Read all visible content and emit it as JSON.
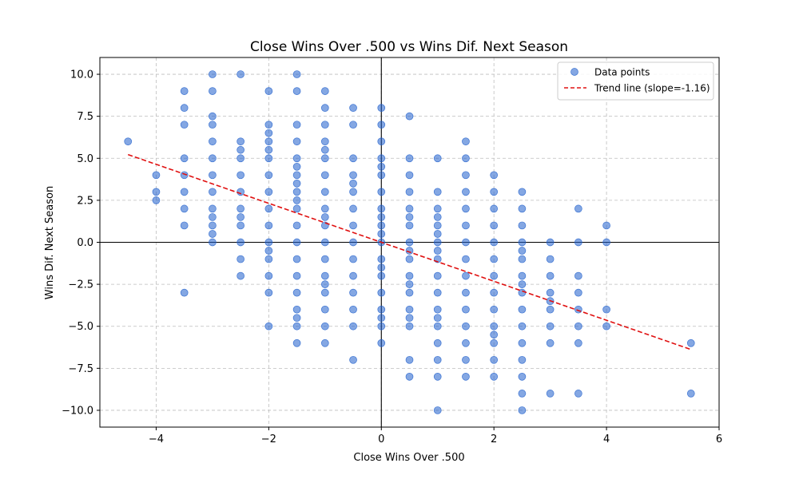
{
  "chart_data": {
    "type": "scatter",
    "title": "Close Wins Over .500 vs Wins Dif. Next Season",
    "xlabel": "Close Wins Over .500",
    "ylabel": "Wins Dif. Next Season",
    "xlim": [
      -5,
      6
    ],
    "ylim": [
      -11,
      11
    ],
    "xticks": [
      -4,
      -2,
      0,
      2,
      4,
      6
    ],
    "xtick_labels": [
      "−4",
      "−2",
      "0",
      "2",
      "4",
      "6"
    ],
    "yticks": [
      -10,
      -7.5,
      -5,
      -2.5,
      0,
      2.5,
      5,
      7.5,
      10
    ],
    "ytick_labels": [
      "−10.0",
      "−7.5",
      "−5.0",
      "−2.5",
      "0.0",
      "2.5",
      "5.0",
      "7.5",
      "10.0"
    ],
    "grid": true,
    "legend": {
      "position": "top-right",
      "entries": [
        "Data points",
        "Trend line (slope=-1.16)"
      ]
    },
    "colors": {
      "points": "#1f5fcc",
      "trend": "#e01010",
      "axes": "#000000"
    },
    "trend_line": {
      "slope": -1.16,
      "x": [
        -4.5,
        5.5
      ],
      "y": [
        5.22,
        -6.38
      ]
    },
    "reference_lines": {
      "x": 0,
      "y": 0
    },
    "series": [
      {
        "name": "Data points",
        "points": [
          [
            -4.5,
            6
          ],
          [
            -4,
            4
          ],
          [
            -4,
            3
          ],
          [
            -4,
            2.5
          ],
          [
            -3.5,
            9
          ],
          [
            -3.5,
            8
          ],
          [
            -3.5,
            7
          ],
          [
            -3.5,
            5
          ],
          [
            -3.5,
            4
          ],
          [
            -3.5,
            3
          ],
          [
            -3.5,
            2
          ],
          [
            -3.5,
            1
          ],
          [
            -3.5,
            -3
          ],
          [
            -3,
            10
          ],
          [
            -3,
            9
          ],
          [
            -3,
            7.5
          ],
          [
            -3,
            7
          ],
          [
            -3,
            6
          ],
          [
            -3,
            5
          ],
          [
            -3,
            4
          ],
          [
            -3,
            3
          ],
          [
            -3,
            2
          ],
          [
            -3,
            1.5
          ],
          [
            -3,
            1
          ],
          [
            -3,
            0.5
          ],
          [
            -3,
            0
          ],
          [
            -2.5,
            10
          ],
          [
            -2.5,
            6
          ],
          [
            -2.5,
            5.5
          ],
          [
            -2.5,
            5
          ],
          [
            -2.5,
            4
          ],
          [
            -2.5,
            3
          ],
          [
            -2.5,
            2
          ],
          [
            -2.5,
            1.5
          ],
          [
            -2.5,
            1
          ],
          [
            -2.5,
            0
          ],
          [
            -2.5,
            -1
          ],
          [
            -2.5,
            -2
          ],
          [
            -2,
            9
          ],
          [
            -2,
            7
          ],
          [
            -2,
            6.5
          ],
          [
            -2,
            6
          ],
          [
            -2,
            5.5
          ],
          [
            -2,
            5
          ],
          [
            -2,
            4
          ],
          [
            -2,
            3
          ],
          [
            -2,
            2
          ],
          [
            -2,
            1
          ],
          [
            -2,
            0
          ],
          [
            -2,
            -0.5
          ],
          [
            -2,
            -1
          ],
          [
            -2,
            -2
          ],
          [
            -2,
            -3
          ],
          [
            -2,
            -5
          ],
          [
            -1.5,
            10
          ],
          [
            -1.5,
            9
          ],
          [
            -1.5,
            7
          ],
          [
            -1.5,
            6
          ],
          [
            -1.5,
            5
          ],
          [
            -1.5,
            4.5
          ],
          [
            -1.5,
            4
          ],
          [
            -1.5,
            3.5
          ],
          [
            -1.5,
            3
          ],
          [
            -1.5,
            2.5
          ],
          [
            -1.5,
            2
          ],
          [
            -1.5,
            1
          ],
          [
            -1.5,
            0
          ],
          [
            -1.5,
            -1
          ],
          [
            -1.5,
            -2
          ],
          [
            -1.5,
            -3
          ],
          [
            -1.5,
            -4
          ],
          [
            -1.5,
            -4.5
          ],
          [
            -1.5,
            -5
          ],
          [
            -1.5,
            -6
          ],
          [
            -1,
            9
          ],
          [
            -1,
            8
          ],
          [
            -1,
            7
          ],
          [
            -1,
            6
          ],
          [
            -1,
            5.5
          ],
          [
            -1,
            5
          ],
          [
            -1,
            4
          ],
          [
            -1,
            3
          ],
          [
            -1,
            2
          ],
          [
            -1,
            1.5
          ],
          [
            -1,
            1
          ],
          [
            -1,
            0
          ],
          [
            -1,
            -1
          ],
          [
            -1,
            -2
          ],
          [
            -1,
            -2.5
          ],
          [
            -1,
            -3
          ],
          [
            -1,
            -4
          ],
          [
            -1,
            -5
          ],
          [
            -1,
            -6
          ],
          [
            -0.5,
            8
          ],
          [
            -0.5,
            7
          ],
          [
            -0.5,
            5
          ],
          [
            -0.5,
            4
          ],
          [
            -0.5,
            3.5
          ],
          [
            -0.5,
            3
          ],
          [
            -0.5,
            2
          ],
          [
            -0.5,
            1
          ],
          [
            -0.5,
            0
          ],
          [
            -0.5,
            -1
          ],
          [
            -0.5,
            -2
          ],
          [
            -0.5,
            -3
          ],
          [
            -0.5,
            -4
          ],
          [
            -0.5,
            -5
          ],
          [
            -0.5,
            -7
          ],
          [
            0,
            8
          ],
          [
            0,
            7
          ],
          [
            0,
            6
          ],
          [
            0,
            5
          ],
          [
            0,
            4.5
          ],
          [
            0,
            4
          ],
          [
            0,
            3
          ],
          [
            0,
            2
          ],
          [
            0,
            1.5
          ],
          [
            0,
            1
          ],
          [
            0,
            0.5
          ],
          [
            0,
            0
          ],
          [
            0,
            -1
          ],
          [
            0,
            -1.5
          ],
          [
            0,
            -2
          ],
          [
            0,
            -3
          ],
          [
            0,
            -4
          ],
          [
            0,
            -4.5
          ],
          [
            0,
            -5
          ],
          [
            0,
            -6
          ],
          [
            0.5,
            7.5
          ],
          [
            0.5,
            5
          ],
          [
            0.5,
            4
          ],
          [
            0.5,
            3
          ],
          [
            0.5,
            2
          ],
          [
            0.5,
            1.5
          ],
          [
            0.5,
            1
          ],
          [
            0.5,
            0
          ],
          [
            0.5,
            -0.5
          ],
          [
            0.5,
            -1
          ],
          [
            0.5,
            -2
          ],
          [
            0.5,
            -2.5
          ],
          [
            0.5,
            -3
          ],
          [
            0.5,
            -4
          ],
          [
            0.5,
            -4.5
          ],
          [
            0.5,
            -5
          ],
          [
            0.5,
            -7
          ],
          [
            0.5,
            -8
          ],
          [
            1,
            5
          ],
          [
            1,
            3
          ],
          [
            1,
            2
          ],
          [
            1,
            1.5
          ],
          [
            1,
            1
          ],
          [
            1,
            0.5
          ],
          [
            1,
            0
          ],
          [
            1,
            -0.5
          ],
          [
            1,
            -1
          ],
          [
            1,
            -2
          ],
          [
            1,
            -3
          ],
          [
            1,
            -4
          ],
          [
            1,
            -4.5
          ],
          [
            1,
            -5
          ],
          [
            1,
            -6
          ],
          [
            1,
            -7
          ],
          [
            1,
            -8
          ],
          [
            1,
            -10
          ],
          [
            1.5,
            6
          ],
          [
            1.5,
            5
          ],
          [
            1.5,
            4
          ],
          [
            1.5,
            3
          ],
          [
            1.5,
            2
          ],
          [
            1.5,
            1
          ],
          [
            1.5,
            0
          ],
          [
            1.5,
            -1
          ],
          [
            1.5,
            -2
          ],
          [
            1.5,
            -3
          ],
          [
            1.5,
            -4
          ],
          [
            1.5,
            -5
          ],
          [
            1.5,
            -6
          ],
          [
            1.5,
            -7
          ],
          [
            1.5,
            -8
          ],
          [
            2,
            4
          ],
          [
            2,
            3
          ],
          [
            2,
            2
          ],
          [
            2,
            1
          ],
          [
            2,
            0
          ],
          [
            2,
            -1
          ],
          [
            2,
            -2
          ],
          [
            2,
            -3
          ],
          [
            2,
            -4
          ],
          [
            2,
            -5
          ],
          [
            2,
            -5.5
          ],
          [
            2,
            -6
          ],
          [
            2,
            -7
          ],
          [
            2,
            -8
          ],
          [
            2.5,
            3
          ],
          [
            2.5,
            2
          ],
          [
            2.5,
            1
          ],
          [
            2.5,
            0
          ],
          [
            2.5,
            -0.5
          ],
          [
            2.5,
            -1
          ],
          [
            2.5,
            -2
          ],
          [
            2.5,
            -2.5
          ],
          [
            2.5,
            -3
          ],
          [
            2.5,
            -4
          ],
          [
            2.5,
            -5
          ],
          [
            2.5,
            -6
          ],
          [
            2.5,
            -7
          ],
          [
            2.5,
            -8
          ],
          [
            2.5,
            -9
          ],
          [
            2.5,
            -10
          ],
          [
            3,
            0
          ],
          [
            3,
            -1
          ],
          [
            3,
            -2
          ],
          [
            3,
            -3
          ],
          [
            3,
            -3.5
          ],
          [
            3,
            -4
          ],
          [
            3,
            -5
          ],
          [
            3,
            -6
          ],
          [
            3,
            -9
          ],
          [
            3.5,
            2
          ],
          [
            3.5,
            0
          ],
          [
            3.5,
            -2
          ],
          [
            3.5,
            -3
          ],
          [
            3.5,
            -4
          ],
          [
            3.5,
            -5
          ],
          [
            3.5,
            -6
          ],
          [
            3.5,
            -9
          ],
          [
            4,
            1
          ],
          [
            4,
            0
          ],
          [
            4,
            -4
          ],
          [
            4,
            -5
          ],
          [
            5.5,
            -6
          ],
          [
            5.5,
            -9
          ]
        ]
      }
    ]
  }
}
